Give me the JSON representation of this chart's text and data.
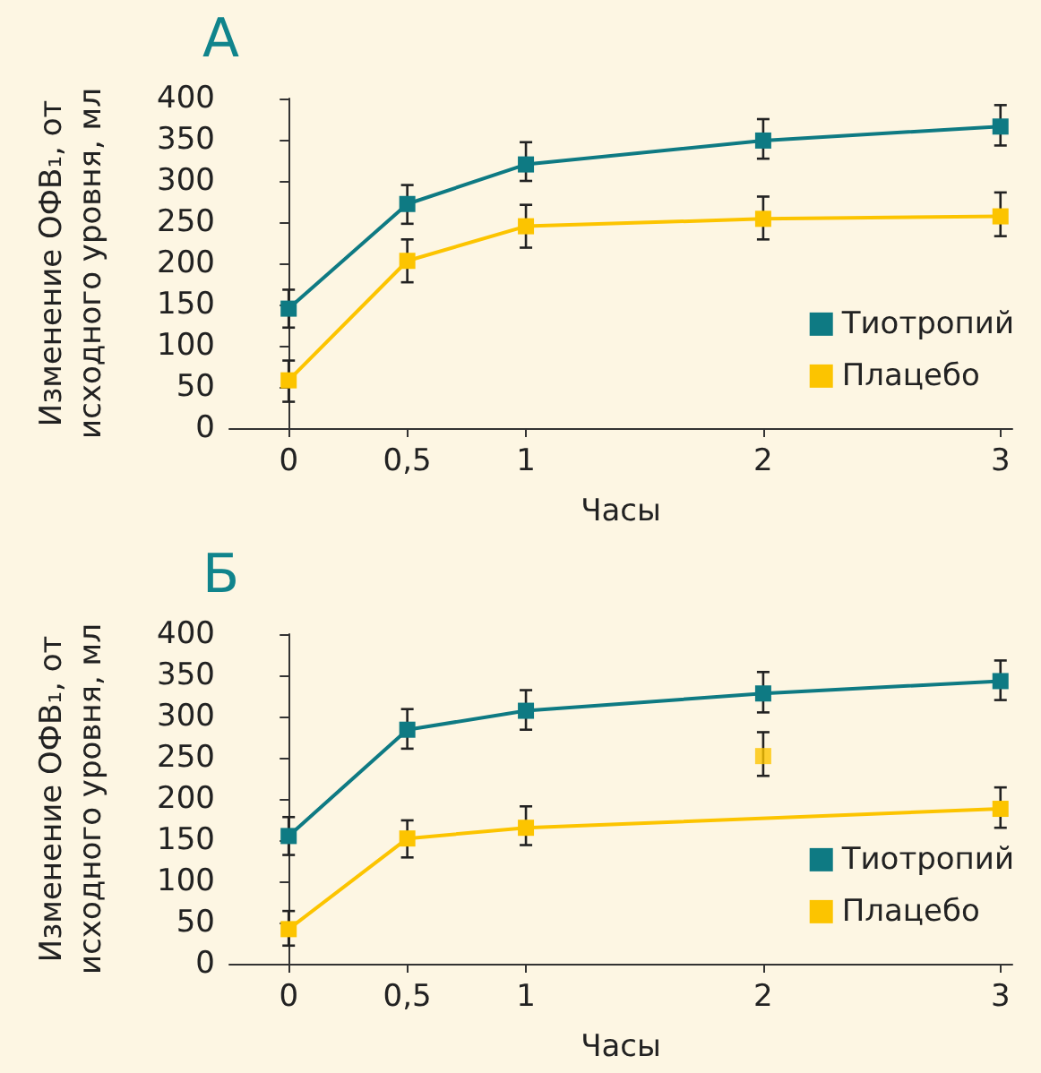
{
  "chart_data": [
    {
      "type": "line",
      "title": "А",
      "xlabel": "Часы",
      "ylabel": "Изменение ОФВ₁, от исходного уровня, мл",
      "x": [
        0,
        0.5,
        1,
        2,
        3
      ],
      "series": [
        {
          "name": "Тиотропий",
          "color": "#0e7a83",
          "values": [
            145,
            272,
            320,
            349,
            366
          ],
          "errors": [
            [
              122,
              168
            ],
            [
              248,
              295
            ],
            [
              300,
              347
            ],
            [
              327,
              375
            ],
            [
              343,
              392
            ]
          ]
        },
        {
          "name": "Плацебо",
          "color": "#fcc400",
          "values": [
            58,
            203,
            245,
            254,
            257
          ],
          "errors": [
            [
              32,
              82
            ],
            [
              177,
              229
            ],
            [
              219,
              271
            ],
            [
              229,
              281
            ],
            [
              233,
              286
            ]
          ]
        }
      ],
      "xlim": [
        -0.25,
        3.05
      ],
      "xticks": [
        0,
        {
          "value": 0.5,
          "label": "0,5"
        },
        1,
        2,
        3
      ],
      "ylim": [
        0,
        400
      ],
      "yticks": [
        0,
        50,
        100,
        150,
        200,
        250,
        300,
        350,
        400
      ],
      "grid": false,
      "legend": "right",
      "marker": "square",
      "line_style": "solid"
    },
    {
      "type": "line",
      "title": "Б",
      "xlabel": "Часы",
      "ylabel": "Изменение ОФВ₁, от исходного уровня, мл",
      "x": [
        0,
        0.5,
        1,
        2,
        3
      ],
      "series": [
        {
          "name": "Тиотропий",
          "color": "#0e7a83",
          "values": [
            155,
            284,
            307,
            328,
            343
          ],
          "errors": [
            [
              132,
              178
            ],
            [
              261,
              309
            ],
            [
              284,
              332
            ],
            [
              305,
              354
            ],
            [
              320,
              368
            ]
          ]
        },
        {
          "name": "Плацебо",
          "color": "#fcc400",
          "x": [
            0,
            0.5,
            1,
            3
          ],
          "values": [
            42,
            152,
            165,
            188
          ],
          "errors": [
            [
              22,
              64
            ],
            [
              129,
              174
            ],
            [
              144,
              191
            ],
            [
              165,
              214
            ]
          ]
        },
        {
          "type": "scatter",
          "color": "#fcc400",
          "x": [
            2
          ],
          "values": [
            252
          ],
          "errors": [
            [
              228,
              281
            ]
          ]
        }
      ],
      "xlim": [
        -0.25,
        3.05
      ],
      "xticks": [
        0,
        {
          "value": 0.5,
          "label": "0,5"
        },
        1,
        2,
        3
      ],
      "ylim": [
        0,
        400
      ],
      "yticks": [
        0,
        50,
        100,
        150,
        200,
        250,
        300,
        350,
        400
      ],
      "grid": false,
      "legend": "right",
      "marker": "square",
      "line_style": "solid"
    }
  ]
}
